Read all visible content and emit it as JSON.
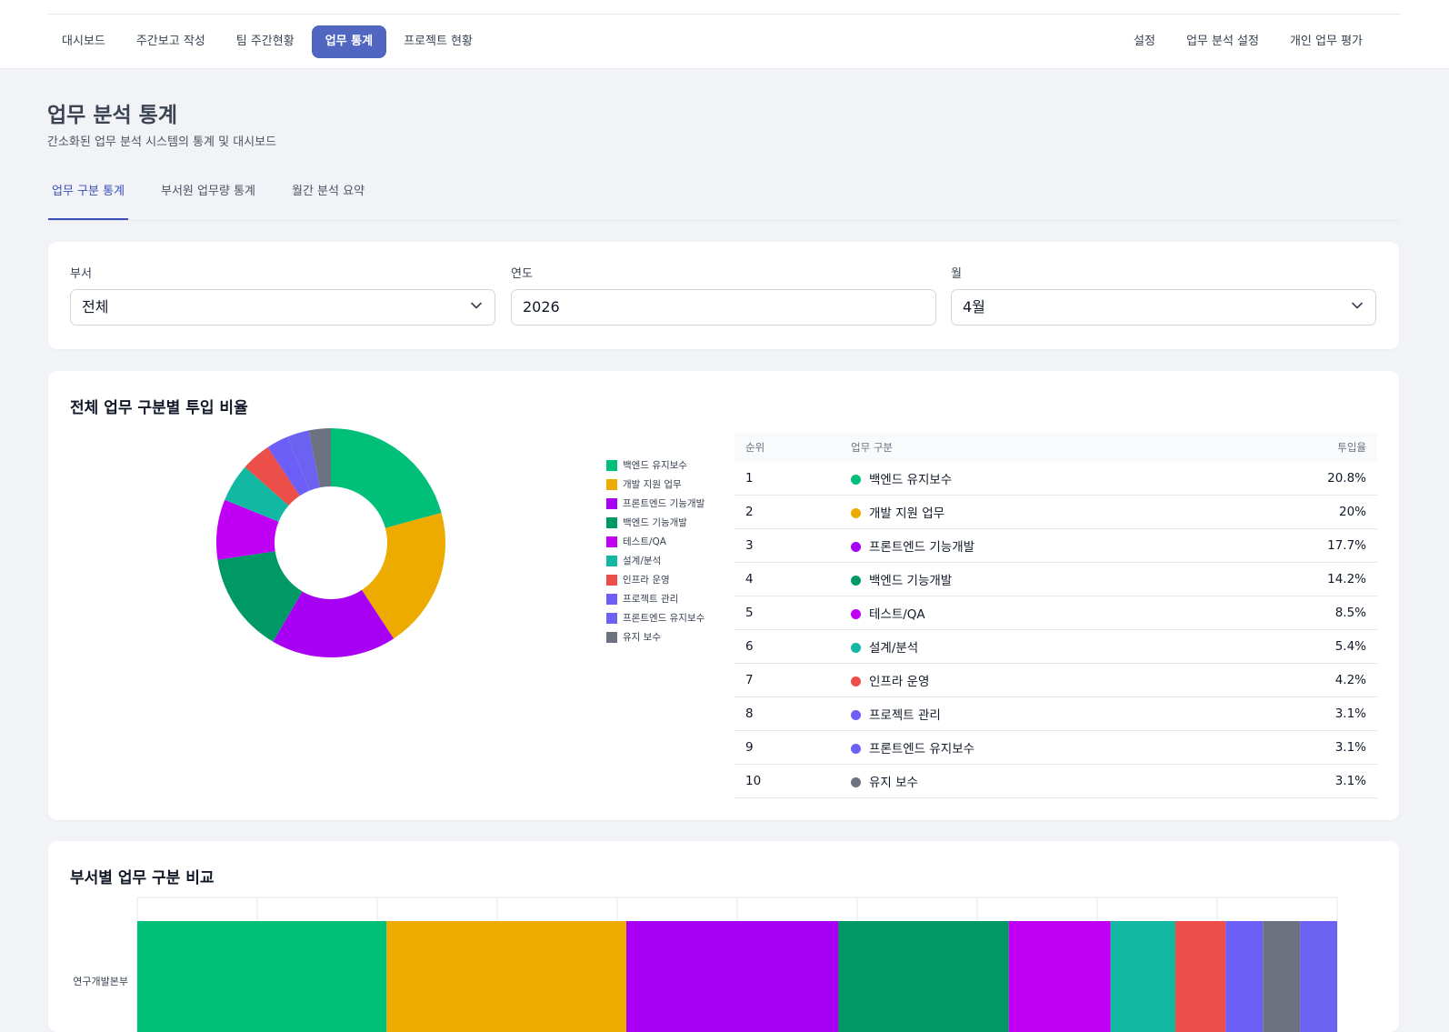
{
  "nav": {
    "left": [
      "대시보드",
      "주간보고 작성",
      "팀 주간현황",
      "업무 통계",
      "프로젝트 현황"
    ],
    "active_index": 3,
    "right": [
      "설정",
      "업무 분석 설정",
      "개인 업무 평가"
    ]
  },
  "page": {
    "title": "업무 분석 통계",
    "subtitle": "간소화된 업무 분석 시스템의 통계 및 대시보드"
  },
  "tabs": [
    "업무 구분 통계",
    "부서원 업무량 통계",
    "월간 분석 요약"
  ],
  "active_tab": 0,
  "filters": {
    "dept": {
      "label": "부서",
      "value": "전체"
    },
    "year": {
      "label": "연도",
      "value": "2026"
    },
    "month": {
      "label": "월",
      "value": "4월"
    }
  },
  "colors": {
    "accent": "#5166c0",
    "tab_active": "#3b4fb8"
  },
  "icons": {
    "select": "chevron-down-icon"
  },
  "ratio_section": {
    "title": "전체 업무 구분별 투입 비율",
    "table_headers": {
      "rank": "순위",
      "category": "업무 구분",
      "ratio": "투입율"
    }
  },
  "chart_data": [
    {
      "type": "pie",
      "title": "전체 업무 구분별 투입 비율",
      "categories": [
        "백엔드 유지보수",
        "개발 지원 업무",
        "프론트엔드 기능개발",
        "백엔드 기능개발",
        "테스트/QA",
        "설계/분석",
        "인프라 운영",
        "프로젝트 관리",
        "프론트엔드 유지보수",
        "유지 보수"
      ],
      "values": [
        20.8,
        20,
        17.7,
        14.2,
        8.5,
        5.4,
        4.2,
        3.1,
        3.1,
        3.1
      ],
      "value_labels": [
        "20.8%",
        "20%",
        "17.7%",
        "14.2%",
        "8.5%",
        "5.4%",
        "4.2%",
        "3.1%",
        "3.1%",
        "3.1%"
      ],
      "colors": [
        "#00bf78",
        "#edab00",
        "#a800f5",
        "#009965",
        "#bf00f5",
        "#13b8a2",
        "#ec4e4a",
        "#6d5ef7",
        "#6c62f2",
        "#6d7280"
      ],
      "legend_position": "right"
    },
    {
      "type": "bar",
      "title": "부서별 업무 구분 비교",
      "orientation": "horizontal-stacked",
      "categories": [
        "연구개발본부"
      ],
      "series": [
        {
          "name": "백엔드 유지보수",
          "values": [
            20.8
          ]
        },
        {
          "name": "개발 지원 업무",
          "values": [
            20
          ]
        },
        {
          "name": "프론트엔드 기능개발",
          "values": [
            17.7
          ]
        },
        {
          "name": "백엔드 기능개발",
          "values": [
            14.2
          ]
        },
        {
          "name": "테스트/QA",
          "values": [
            8.5
          ]
        },
        {
          "name": "설계/분석",
          "values": [
            5.4
          ]
        },
        {
          "name": "인프라 운영",
          "values": [
            4.2
          ]
        },
        {
          "name": "프로젝트 관리",
          "values": [
            3.1
          ]
        },
        {
          "name": "유지 보수",
          "values": [
            3.1
          ]
        },
        {
          "name": "프론트엔드 유지보수",
          "values": [
            3.1
          ]
        }
      ],
      "colors": [
        "#00bf78",
        "#edab00",
        "#a800f5",
        "#009965",
        "#bf00f5",
        "#13b8a2",
        "#ec4e4a",
        "#6d5ef7",
        "#6d7280",
        "#6c62f2"
      ],
      "grid": true
    }
  ]
}
